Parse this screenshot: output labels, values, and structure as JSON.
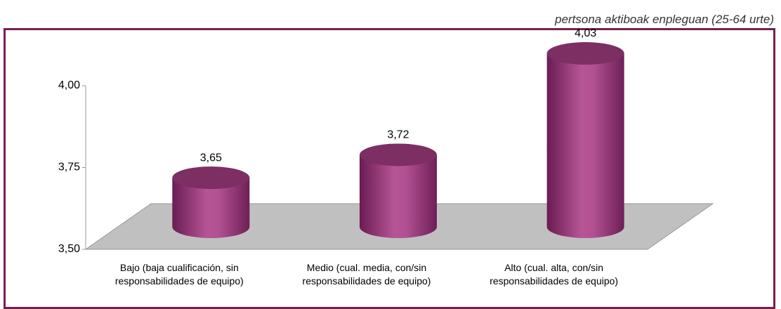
{
  "chart_data": {
    "type": "bar",
    "subtitle": "pertsona aktiboak enpleguan (25-64 urte)",
    "categories": [
      "Bajo (baja cualificación, sin responsabilidades de equipo)",
      "Medio (cual. media, con/sin responsabilidades de equipo)",
      "Alto (cual. alta, con/sin responsabilidades de equipo)"
    ],
    "values": [
      3.65,
      3.72,
      4.03
    ],
    "value_labels": [
      "3,65",
      "3,72",
      "4,03"
    ],
    "color": "#9c3a7c",
    "ylim": [
      3.5,
      4.0
    ],
    "yticks": [
      {
        "value": 3.5,
        "label": "3,50"
      },
      {
        "value": 3.75,
        "label": "3,75"
      },
      {
        "value": 4.0,
        "label": "4,00"
      }
    ],
    "grid": false
  }
}
